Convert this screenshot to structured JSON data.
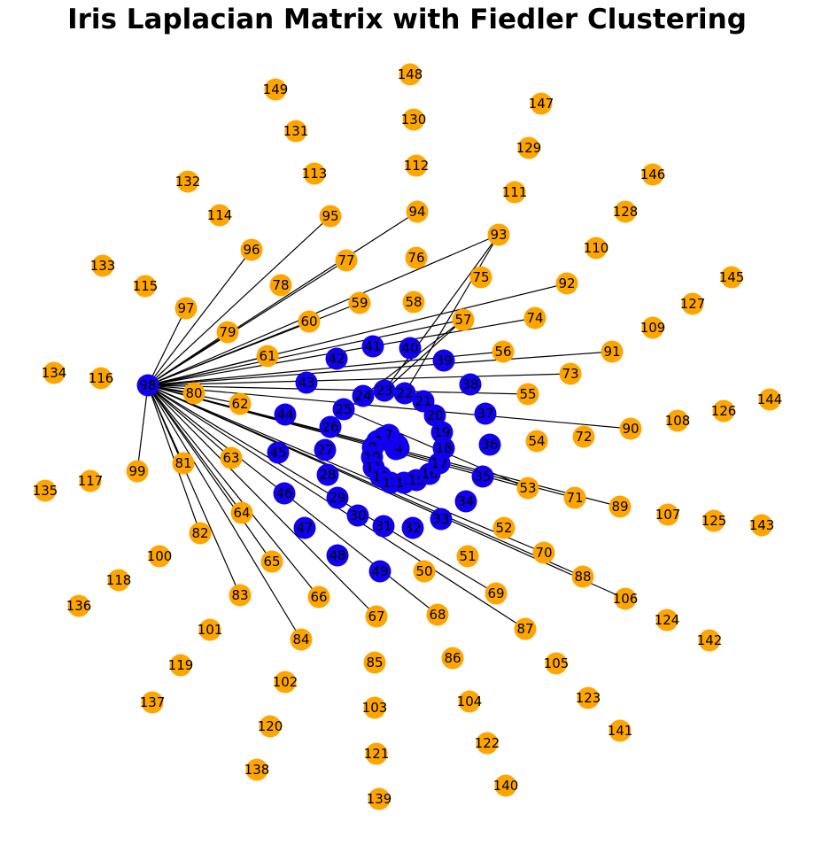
{
  "title": "Iris Laplacian Matrix with Fiedler Clustering",
  "colors": {
    "cluster_a": "#1100ee",
    "cluster_b": "#ffa500",
    "edge": "#000000"
  },
  "hub": "98",
  "clusters": {
    "blue": [
      "0",
      "1",
      "2",
      "3",
      "4",
      "5",
      "6",
      "7",
      "8",
      "9",
      "10",
      "11",
      "12",
      "13",
      "14",
      "15",
      "16",
      "17",
      "18",
      "19",
      "20",
      "21",
      "22",
      "23",
      "24",
      "25",
      "26",
      "27",
      "28",
      "29",
      "30",
      "31",
      "32",
      "33",
      "34",
      "35",
      "36",
      "37",
      "38",
      "39",
      "40",
      "41",
      "42",
      "43",
      "44",
      "45",
      "46",
      "47",
      "48",
      "49",
      "98"
    ],
    "orange": [
      "50",
      "51",
      "52",
      "53",
      "54",
      "55",
      "56",
      "57",
      "58",
      "59",
      "60",
      "61",
      "62",
      "63",
      "64",
      "65",
      "66",
      "67",
      "68",
      "69",
      "70",
      "71",
      "72",
      "73",
      "74",
      "75",
      "76",
      "77",
      "78",
      "79",
      "80",
      "81",
      "82",
      "83",
      "84",
      "85",
      "86",
      "87",
      "88",
      "89",
      "90",
      "91",
      "92",
      "93",
      "94",
      "95",
      "96",
      "97",
      "99",
      "100",
      "101",
      "102",
      "103",
      "104",
      "105",
      "106",
      "107",
      "108",
      "109",
      "110",
      "111",
      "112",
      "113",
      "114",
      "115",
      "116",
      "117",
      "118",
      "119",
      "120",
      "121",
      "122",
      "123",
      "124",
      "125",
      "126",
      "127",
      "128",
      "129",
      "130",
      "131",
      "132",
      "133",
      "134",
      "135",
      "136",
      "137",
      "138",
      "139",
      "140",
      "141",
      "142",
      "143",
      "144",
      "145",
      "146",
      "147",
      "148",
      "149"
    ]
  },
  "edges": [
    [
      "98",
      "96"
    ],
    [
      "98",
      "95"
    ],
    [
      "98",
      "94"
    ],
    [
      "98",
      "93"
    ],
    [
      "98",
      "92"
    ],
    [
      "98",
      "91"
    ],
    [
      "98",
      "90"
    ],
    [
      "98",
      "89"
    ],
    [
      "98",
      "88"
    ],
    [
      "98",
      "87"
    ],
    [
      "98",
      "84"
    ],
    [
      "98",
      "81"
    ],
    [
      "98",
      "82"
    ],
    [
      "98",
      "80"
    ],
    [
      "98",
      "79"
    ],
    [
      "98",
      "77"
    ],
    [
      "98",
      "74"
    ],
    [
      "98",
      "73"
    ],
    [
      "98",
      "71"
    ],
    [
      "98",
      "69"
    ],
    [
      "98",
      "67"
    ],
    [
      "98",
      "68"
    ],
    [
      "98",
      "66"
    ],
    [
      "98",
      "64"
    ],
    [
      "98",
      "63"
    ],
    [
      "98",
      "62"
    ],
    [
      "98",
      "61"
    ],
    [
      "98",
      "60"
    ],
    [
      "98",
      "59"
    ],
    [
      "98",
      "57"
    ],
    [
      "98",
      "55"
    ],
    [
      "98",
      "53"
    ],
    [
      "98",
      "56"
    ],
    [
      "98",
      "106"
    ],
    [
      "98",
      "99"
    ],
    [
      "98",
      "97"
    ],
    [
      "98",
      "65"
    ],
    [
      "98",
      "83"
    ],
    [
      "98",
      "70"
    ],
    [
      "93",
      "22"
    ],
    [
      "93",
      "23"
    ],
    [
      "57",
      "24"
    ],
    [
      "57",
      "23"
    ],
    [
      "53",
      "25"
    ]
  ]
}
